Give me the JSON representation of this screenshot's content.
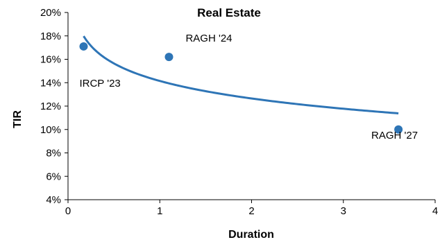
{
  "chart_data": {
    "type": "scatter",
    "title": "Real Estate",
    "xlabel": "Duration",
    "ylabel": "TIR",
    "xlim": [
      0,
      4
    ],
    "ylim": [
      4,
      20
    ],
    "x_ticks": [
      0,
      1,
      2,
      3,
      4
    ],
    "x_tick_labels": [
      "0",
      "1",
      "2",
      "3",
      "4"
    ],
    "y_ticks": [
      4,
      6,
      8,
      10,
      12,
      14,
      16,
      18,
      20
    ],
    "y_tick_labels": [
      "4%",
      "6%",
      "8%",
      "10%",
      "12%",
      "14%",
      "16%",
      "18%",
      "20%"
    ],
    "grid": false,
    "legend": "none",
    "point_color": "#2e75b6",
    "trend_color": "#2e75b6",
    "points": [
      {
        "label": "IRCP '23",
        "x": 0.17,
        "y": 17.1
      },
      {
        "label": "RAGH '24",
        "x": 1.1,
        "y": 16.2
      },
      {
        "label": "RAGH '27",
        "x": 3.6,
        "y": 10.0
      }
    ],
    "trendline": {
      "type": "logarithmic",
      "x_range": [
        0.17,
        3.6
      ]
    }
  }
}
